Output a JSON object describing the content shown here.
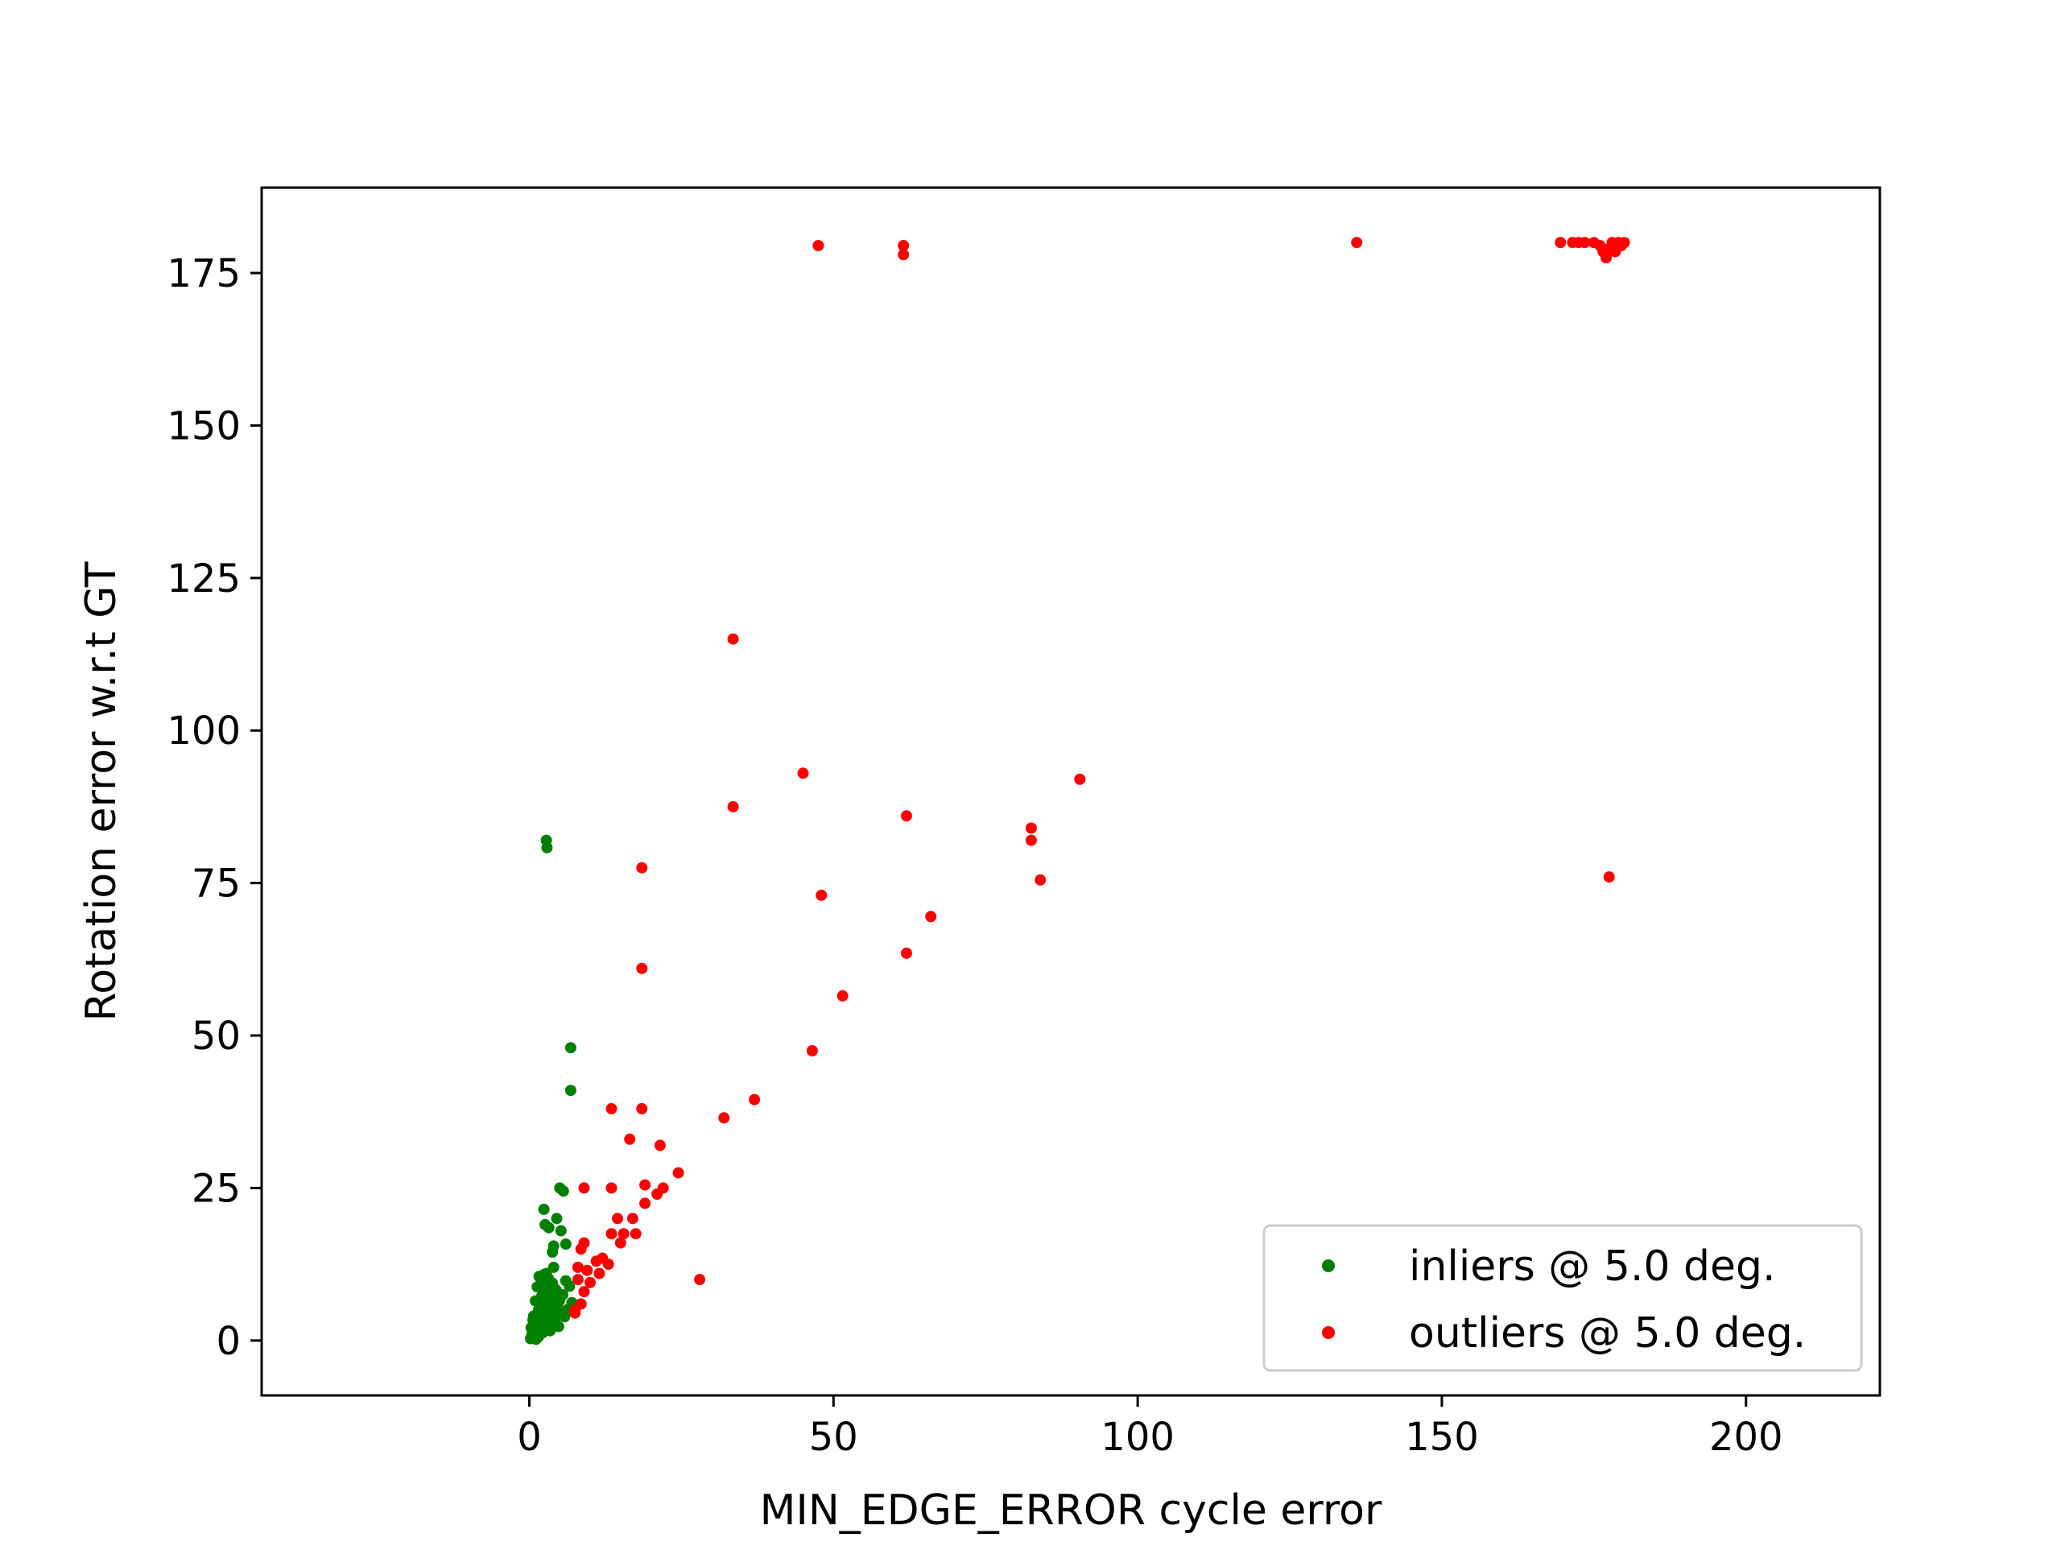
{
  "chart_data": {
    "type": "scatter",
    "xlabel": "MIN_EDGE_ERROR cycle error",
    "ylabel": "Rotation error w.r.t GT",
    "xlim": [
      -44,
      222
    ],
    "ylim": [
      -9,
      189
    ],
    "xticks": [
      0,
      50,
      100,
      150,
      200
    ],
    "yticks": [
      0,
      25,
      50,
      75,
      100,
      125,
      150,
      175
    ],
    "grid": false,
    "legend_position": "lower-right",
    "series": [
      {
        "name": "inliers @ 5.0 deg.",
        "color": "#008000",
        "points": [
          [
            0.2,
            0.3
          ],
          [
            0.4,
            0.8
          ],
          [
            0.5,
            1.2
          ],
          [
            0.6,
            0.5
          ],
          [
            0.8,
            1.8
          ],
          [
            0.9,
            2.5
          ],
          [
            1.0,
            0.4
          ],
          [
            1.1,
            3.1
          ],
          [
            1.2,
            1.5
          ],
          [
            1.3,
            4.2
          ],
          [
            1.4,
            2.2
          ],
          [
            1.5,
            5.0
          ],
          [
            1.6,
            0.9
          ],
          [
            1.7,
            3.6
          ],
          [
            1.8,
            6.1
          ],
          [
            1.9,
            2.8
          ],
          [
            2.0,
            7.2
          ],
          [
            2.1,
            4.5
          ],
          [
            2.2,
            1.3
          ],
          [
            2.3,
            8.0
          ],
          [
            2.4,
            5.5
          ],
          [
            2.5,
            3.3
          ],
          [
            2.6,
            9.1
          ],
          [
            2.7,
            6.4
          ],
          [
            2.8,
            2.0
          ],
          [
            2.9,
            7.8
          ],
          [
            3.0,
            4.9
          ],
          [
            3.1,
            10.2
          ],
          [
            3.2,
            3.7
          ],
          [
            3.3,
            6.8
          ],
          [
            3.4,
            1.6
          ],
          [
            3.5,
            8.6
          ],
          [
            3.6,
            5.2
          ],
          [
            3.7,
            2.6
          ],
          [
            3.8,
            9.4
          ],
          [
            3.9,
            4.1
          ],
          [
            4.0,
            7.0
          ],
          [
            4.2,
            3.0
          ],
          [
            4.4,
            8.3
          ],
          [
            4.6,
            5.8
          ],
          [
            4.8,
            2.3
          ],
          [
            5.0,
            6.6
          ],
          [
            5.2,
            4.4
          ],
          [
            5.5,
            7.5
          ],
          [
            5.8,
            3.9
          ],
          [
            6.0,
            9.8
          ],
          [
            6.3,
            5.1
          ],
          [
            6.6,
            8.9
          ],
          [
            7.0,
            6.2
          ],
          [
            0.3,
            2.1
          ],
          [
            0.7,
            4.0
          ],
          [
            1.0,
            6.5
          ],
          [
            1.3,
            8.8
          ],
          [
            1.6,
            10.5
          ],
          [
            2.0,
            9.9
          ],
          [
            2.4,
            10.8
          ],
          [
            2.8,
            11.0
          ],
          [
            1.1,
            0.2
          ],
          [
            1.5,
            0.6
          ],
          [
            0.6,
            3.4
          ],
          [
            2.6,
            19.0
          ],
          [
            3.2,
            18.5
          ],
          [
            2.4,
            21.5
          ],
          [
            4.5,
            20.0
          ],
          [
            5.2,
            18.0
          ],
          [
            5.0,
            25.0
          ],
          [
            5.6,
            24.5
          ],
          [
            4.0,
            15.5
          ],
          [
            3.8,
            14.5
          ],
          [
            4.0,
            12.0
          ],
          [
            6.0,
            15.8
          ],
          [
            6.8,
            48.0
          ],
          [
            6.8,
            41.0
          ],
          [
            2.8,
            82.0
          ],
          [
            2.9,
            80.8
          ]
        ]
      },
      {
        "name": "outliers @ 5.0 deg.",
        "color": "#ff0000",
        "points": [
          [
            47.5,
            179.5
          ],
          [
            61.5,
            179.5
          ],
          [
            61.5,
            178.0
          ],
          [
            136.0,
            180.0
          ],
          [
            169.5,
            180.0
          ],
          [
            171.5,
            180.0
          ],
          [
            172.5,
            180.0
          ],
          [
            173.5,
            180.0
          ],
          [
            175.0,
            180.0
          ],
          [
            176.0,
            179.5
          ],
          [
            176.5,
            178.5
          ],
          [
            177.0,
            177.5
          ],
          [
            177.5,
            179.0
          ],
          [
            178.0,
            180.0
          ],
          [
            178.5,
            178.5
          ],
          [
            179.0,
            180.0
          ],
          [
            179.5,
            179.5
          ],
          [
            180.0,
            180.0
          ],
          [
            33.5,
            115.0
          ],
          [
            45.0,
            93.0
          ],
          [
            33.5,
            87.5
          ],
          [
            90.5,
            92.0
          ],
          [
            62.0,
            86.0
          ],
          [
            82.5,
            84.0
          ],
          [
            82.5,
            82.0
          ],
          [
            84.0,
            75.5
          ],
          [
            177.5,
            76.0
          ],
          [
            18.5,
            77.5
          ],
          [
            48.0,
            73.0
          ],
          [
            66.0,
            69.5
          ],
          [
            62.0,
            63.5
          ],
          [
            18.5,
            61.0
          ],
          [
            51.5,
            56.5
          ],
          [
            46.5,
            47.5
          ],
          [
            37.0,
            39.5
          ],
          [
            32.0,
            36.5
          ],
          [
            13.5,
            38.0
          ],
          [
            18.5,
            38.0
          ],
          [
            16.5,
            33.0
          ],
          [
            21.5,
            32.0
          ],
          [
            24.5,
            27.5
          ],
          [
            22.0,
            25.0
          ],
          [
            19.0,
            25.5
          ],
          [
            13.5,
            25.0
          ],
          [
            9.0,
            25.0
          ],
          [
            21.0,
            24.0
          ],
          [
            19.0,
            22.5
          ],
          [
            14.5,
            20.0
          ],
          [
            17.0,
            20.0
          ],
          [
            13.5,
            17.5
          ],
          [
            15.5,
            17.5
          ],
          [
            17.5,
            17.5
          ],
          [
            15.0,
            16.0
          ],
          [
            9.0,
            16.0
          ],
          [
            8.5,
            15.0
          ],
          [
            12.0,
            13.5
          ],
          [
            11.0,
            13.0
          ],
          [
            13.0,
            12.5
          ],
          [
            8.0,
            12.0
          ],
          [
            9.5,
            11.5
          ],
          [
            11.5,
            11.0
          ],
          [
            8.0,
            10.0
          ],
          [
            10.0,
            9.5
          ],
          [
            9.0,
            8.0
          ],
          [
            8.5,
            6.0
          ],
          [
            7.5,
            5.0
          ],
          [
            7.5,
            4.5
          ],
          [
            28.0,
            10.0
          ]
        ]
      }
    ]
  }
}
